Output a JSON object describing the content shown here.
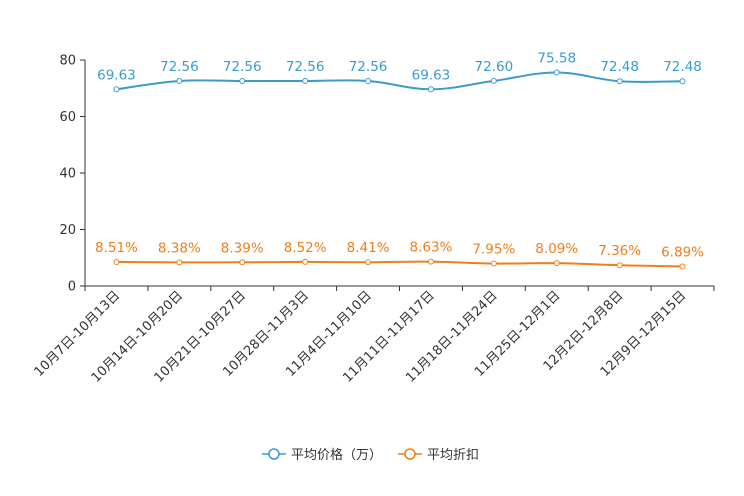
{
  "chart_data": {
    "type": "line",
    "title": "",
    "xlabel": "",
    "ylabel": "",
    "ylim": [
      0,
      80
    ],
    "yticks": [
      0,
      20,
      40,
      60,
      80
    ],
    "grid": false,
    "legend_position": "bottom-center",
    "categories": [
      "10月7日-10月13日",
      "10月14日-10月20日",
      "10月21日-10月27日",
      "10月28日-11月3日",
      "11月4日-11月10日",
      "11月11日-11月17日",
      "11月18日-11月24日",
      "11月25日-12月1日",
      "12月2日-12月8日",
      "12月9日-12月15日"
    ],
    "series": [
      {
        "name": "平均价格（万）",
        "color": "#3a9bd0",
        "values": [
          69.63,
          72.56,
          72.56,
          72.56,
          72.56,
          69.63,
          72.6,
          75.58,
          72.48,
          72.48
        ],
        "labels": [
          "69.63",
          "72.56",
          "72.56",
          "72.56",
          "72.56",
          "69.63",
          "72.60",
          "75.58",
          "72.48",
          "72.48"
        ]
      },
      {
        "name": "平均折扣",
        "color": "#f07f1a",
        "values": [
          8.51,
          8.38,
          8.39,
          8.52,
          8.41,
          8.63,
          7.95,
          8.09,
          7.36,
          6.89
        ],
        "labels": [
          "8.51%",
          "8.38%",
          "8.39%",
          "8.52%",
          "8.41%",
          "8.63%",
          "7.95%",
          "8.09%",
          "7.36%",
          "6.89%"
        ]
      }
    ]
  }
}
